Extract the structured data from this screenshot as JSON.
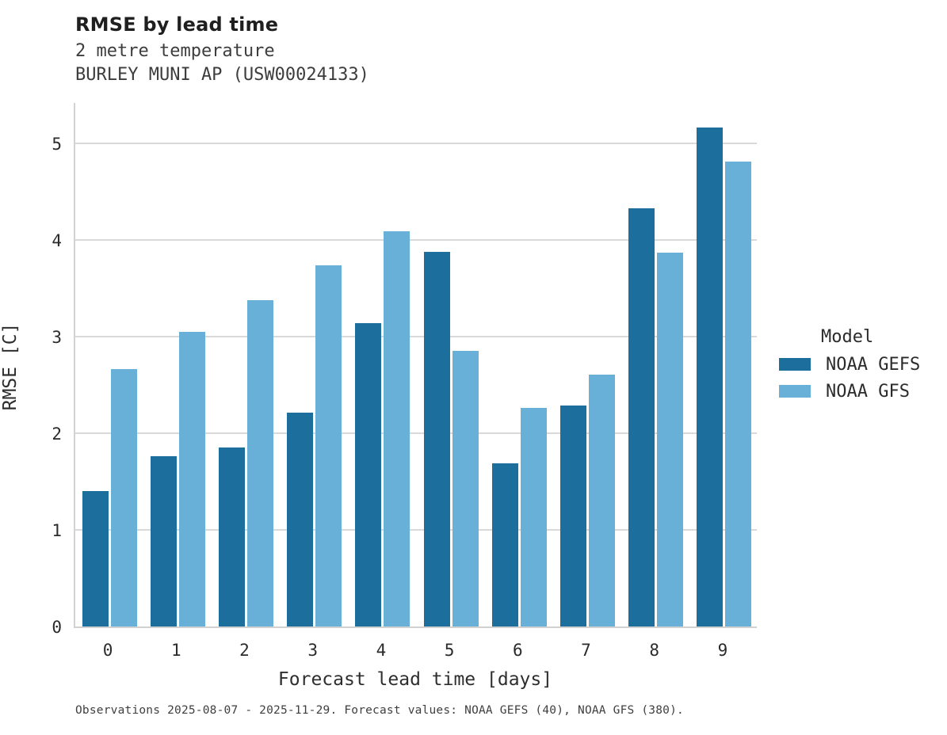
{
  "header": {
    "title": "RMSE by lead time",
    "subtitle_line1": "2 metre temperature",
    "subtitle_line2": "BURLEY MUNI AP (USW00024133)"
  },
  "chart_data": {
    "type": "bar",
    "title": "RMSE by lead time",
    "subtitle": [
      "2 metre temperature",
      "BURLEY MUNI AP (USW00024133)"
    ],
    "categories": [
      "0",
      "1",
      "2",
      "3",
      "4",
      "5",
      "6",
      "7",
      "8",
      "9"
    ],
    "series": [
      {
        "name": "NOAA GEFS",
        "color": "#1c6e9d",
        "values": [
          1.4,
          1.76,
          1.85,
          2.21,
          3.14,
          3.88,
          1.69,
          2.29,
          4.33,
          5.16
        ]
      },
      {
        "name": "NOAA GFS",
        "color": "#69b0d8",
        "values": [
          2.66,
          3.05,
          3.38,
          3.74,
          4.09,
          2.85,
          2.26,
          2.61,
          3.87,
          4.81
        ]
      }
    ],
    "xlabel": "Forecast lead time [days]",
    "ylabel": "RMSE [C]",
    "ylim": [
      0,
      5.434
    ],
    "yticks": [
      0,
      1,
      2,
      3,
      4,
      5
    ],
    "grid": "horizontal",
    "gridline_color": "#d9d9d9",
    "legend_title": "Model",
    "legend_position": "right"
  },
  "legend": {
    "title": "Model",
    "items": [
      {
        "label": "NOAA GEFS",
        "color": "#1c6e9d"
      },
      {
        "label": "NOAA GFS",
        "color": "#69b0d8"
      }
    ]
  },
  "footer": {
    "caption": "Observations 2025-08-07 - 2025-11-29. Forecast values: NOAA GEFS (40), NOAA GFS (380)."
  }
}
